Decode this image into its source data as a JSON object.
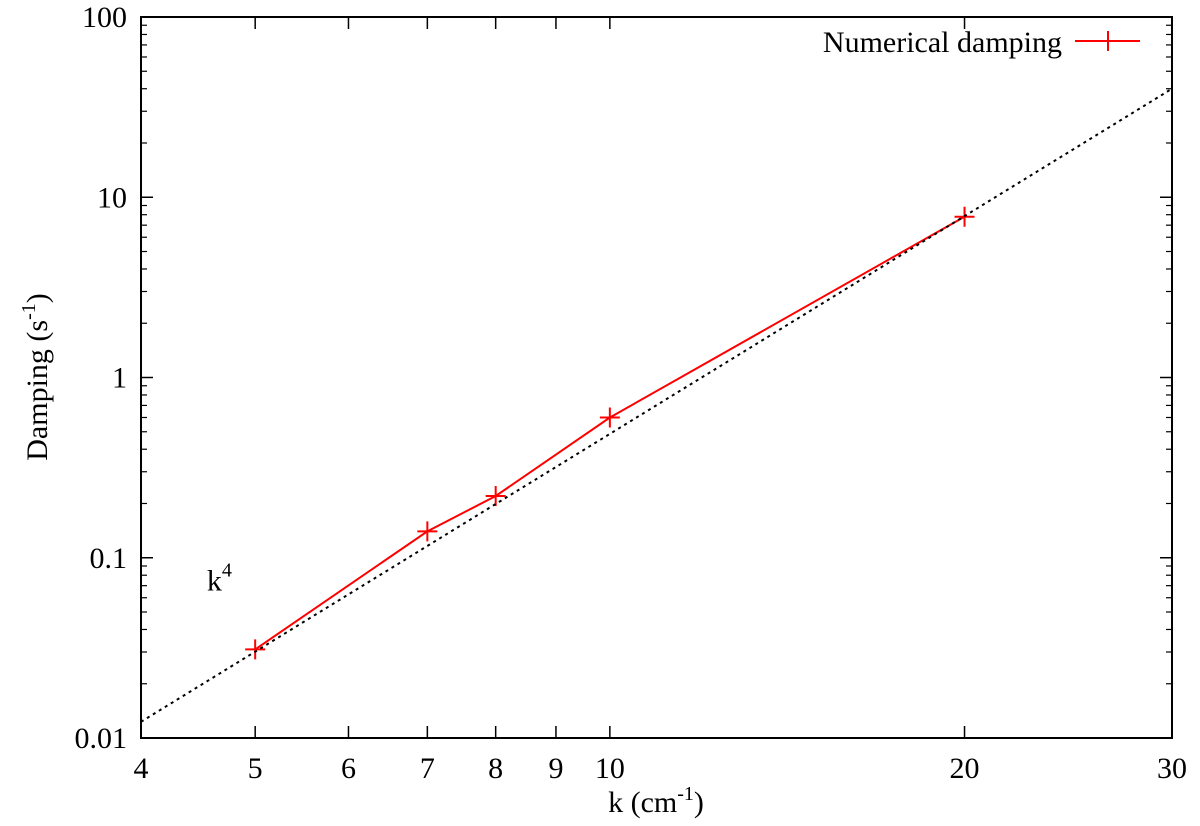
{
  "chart_data": {
    "type": "line",
    "xscale": "log",
    "yscale": "log",
    "xlim": [
      4,
      30
    ],
    "ylim": [
      0.01,
      100
    ],
    "xticks": [
      4,
      5,
      6,
      7,
      8,
      9,
      10,
      20,
      30
    ],
    "xtick_labels": [
      "4",
      "5",
      "6",
      "7",
      "8",
      "9",
      "10",
      "20",
      "30"
    ],
    "yticks": [
      0.01,
      0.1,
      1,
      10,
      100
    ],
    "ytick_labels": [
      "0.01",
      "0.1",
      "1",
      "10",
      "100"
    ],
    "xlabel": {
      "base": "k (cm",
      "sup": "-1",
      "close": ")"
    },
    "ylabel": {
      "base": "Damping (s",
      "sup": "-1",
      "close": ")"
    },
    "legend_position": "top-right",
    "series": [
      {
        "name": "Numerical damping",
        "color": "#ff0000",
        "style": "solid",
        "marker": "plus",
        "x": [
          5,
          7,
          8,
          10,
          20
        ],
        "y": [
          0.031,
          0.14,
          0.22,
          0.6,
          7.8
        ]
      },
      {
        "color": "#000000",
        "style": "dotted",
        "reference": "power-law",
        "x": [
          4,
          30
        ],
        "y": [
          0.0123,
          40
        ]
      }
    ],
    "annotations": [
      {
        "text": "k",
        "sup": "4",
        "x": 4.55,
        "y": 0.075
      }
    ]
  }
}
